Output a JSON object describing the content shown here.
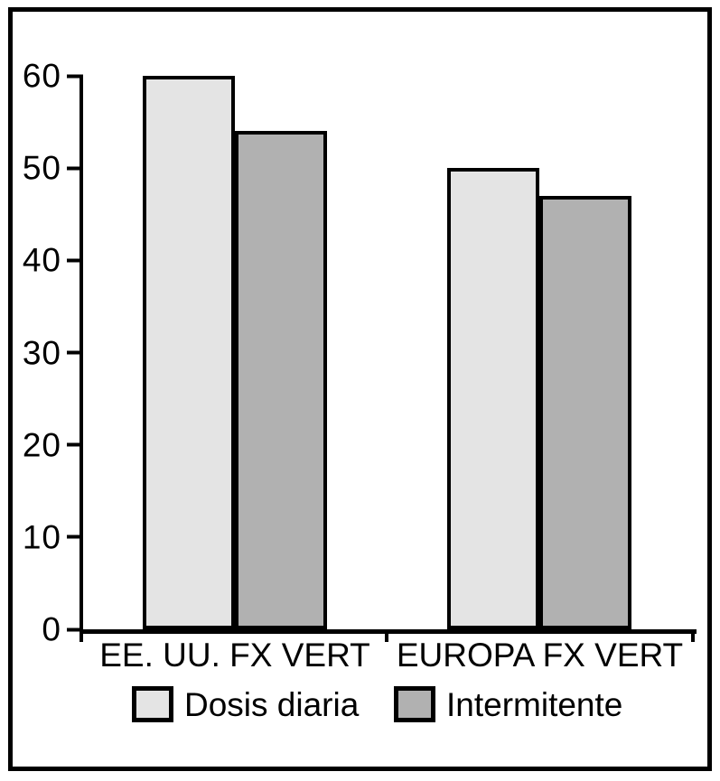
{
  "figure": {
    "background": "#ffffff",
    "frame_color": "#000000"
  },
  "chart_data": {
    "type": "bar",
    "title": "",
    "xlabel": "",
    "ylabel": "",
    "categories": [
      "EE. UU. FX VERT",
      "EUROPA FX VERT"
    ],
    "series": [
      {
        "name": "Dosis diaria",
        "color": "#e4e4e4",
        "values": [
          60,
          50
        ]
      },
      {
        "name": "Intermitente",
        "color": "#b1b1b1",
        "values": [
          54,
          47
        ]
      }
    ],
    "ylim": [
      0,
      60
    ],
    "yticks": [
      "0",
      "10",
      "20",
      "30",
      "40",
      "50",
      "60"
    ],
    "grid": false,
    "legend_position": "bottom",
    "bar_outline_color": "#000000",
    "axis_color": "#000000"
  }
}
